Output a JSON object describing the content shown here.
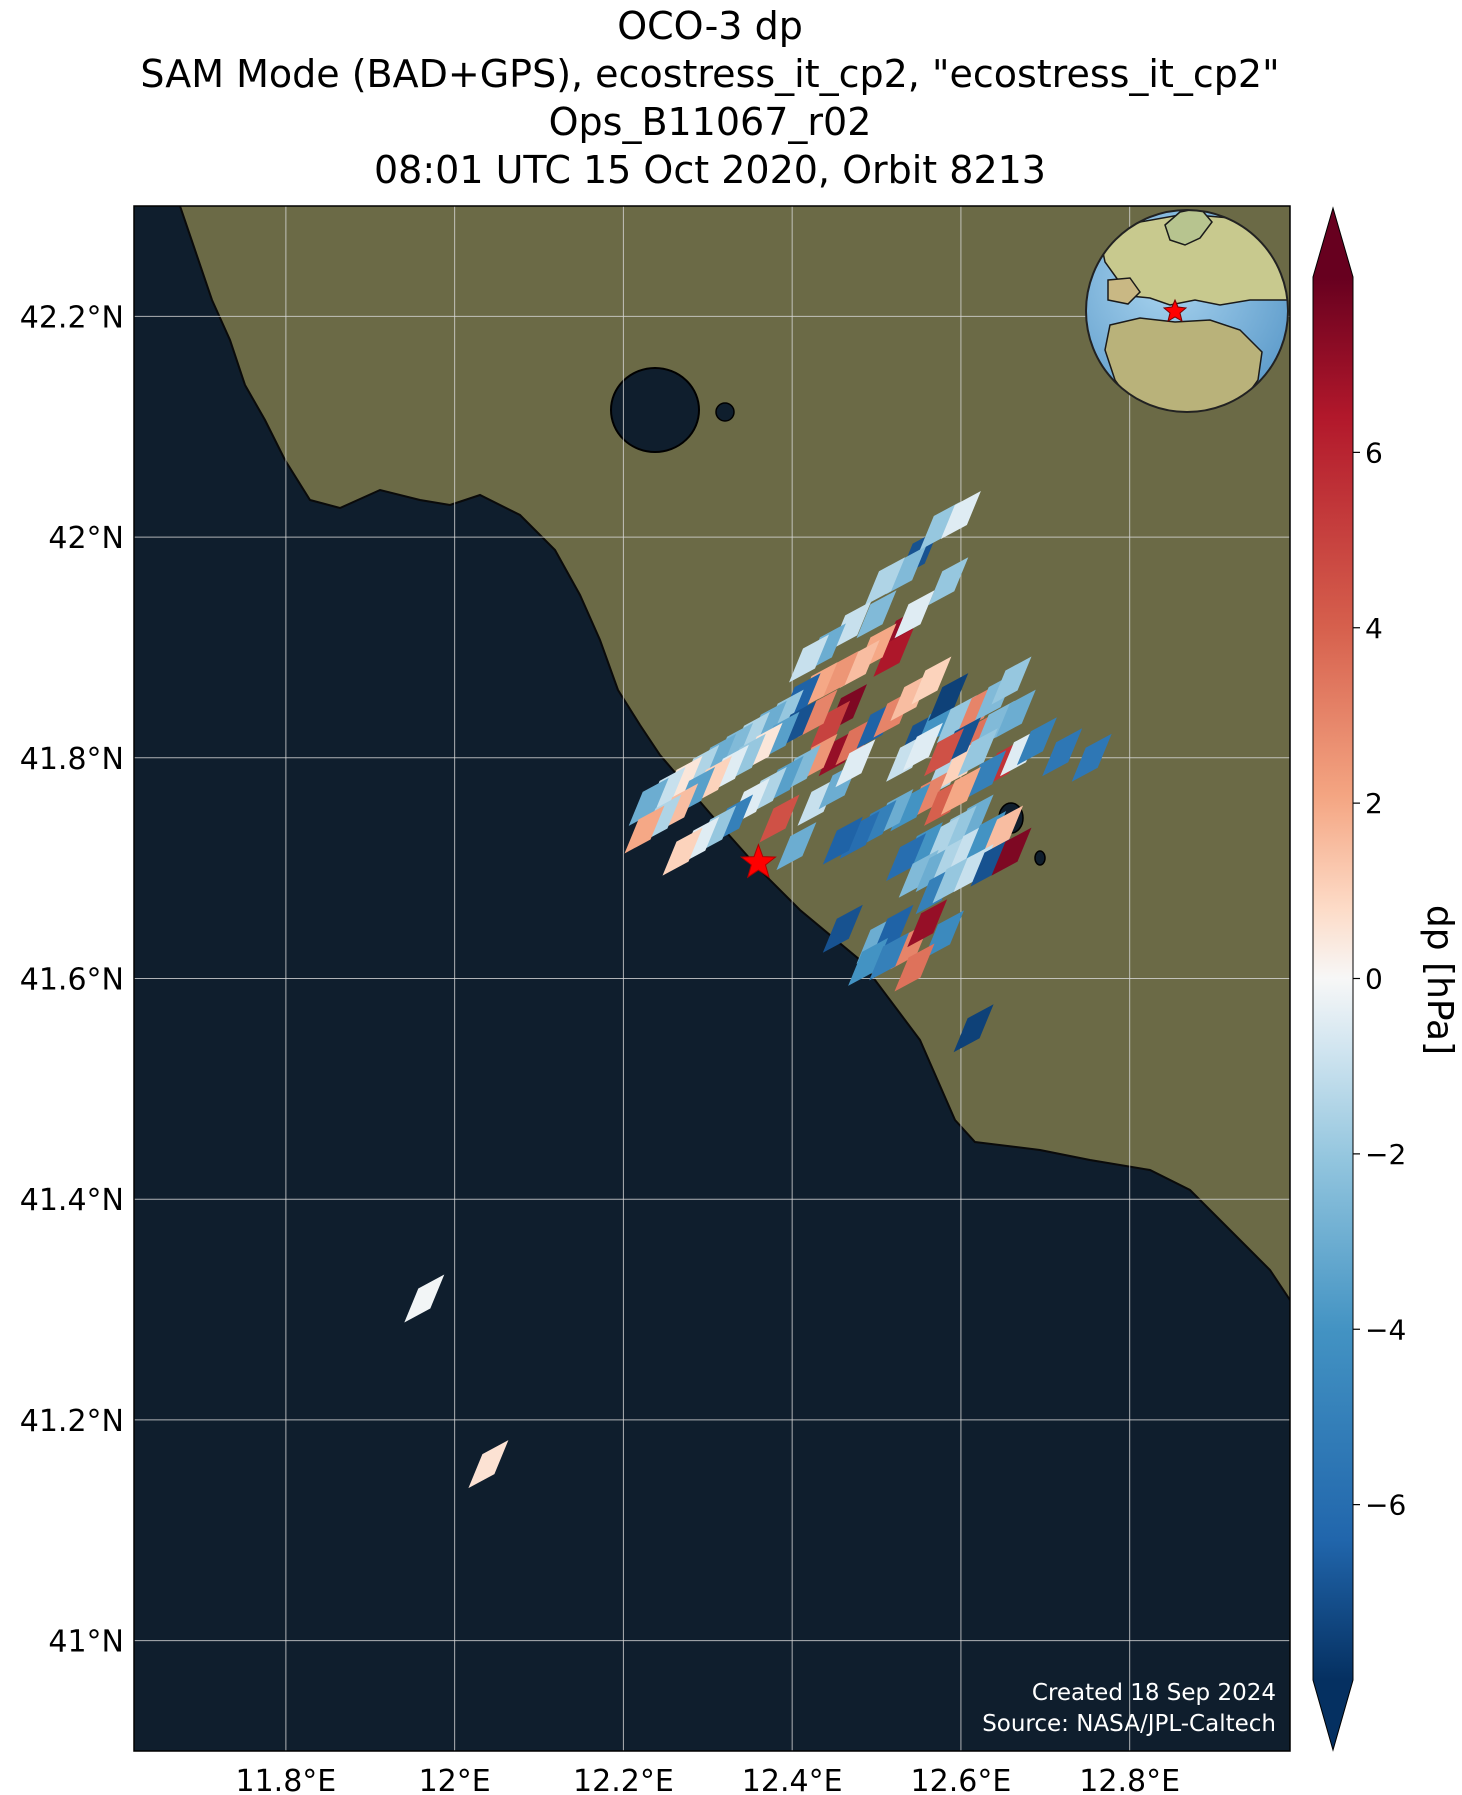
{
  "title": {
    "line1": "OCO-3 dp",
    "line2": "SAM Mode (BAD+GPS), ecostress_it_cp2, \"ecostress_it_cp2\"",
    "line3": "Ops_B11067_r02",
    "line4": "08:01 UTC 15 Oct 2020, Orbit 8213"
  },
  "map": {
    "lon_range": [
      11.62,
      12.99
    ],
    "lat_range": [
      40.9,
      42.3
    ],
    "lon_ticks": [
      {
        "value": 11.8,
        "label": "11.8°E"
      },
      {
        "value": 12.0,
        "label": "12°E"
      },
      {
        "value": 12.2,
        "label": "12.2°E"
      },
      {
        "value": 12.4,
        "label": "12.4°E"
      },
      {
        "value": 12.6,
        "label": "12.6°E"
      },
      {
        "value": 12.8,
        "label": "12.8°E"
      }
    ],
    "lat_ticks": [
      {
        "value": 42.2,
        "label": "42.2°N"
      },
      {
        "value": 42.0,
        "label": "42°N"
      },
      {
        "value": 41.8,
        "label": "41.8°N"
      },
      {
        "value": 41.6,
        "label": "41.6°N"
      },
      {
        "value": 41.4,
        "label": "41.4°N"
      },
      {
        "value": 41.2,
        "label": "41.2°N"
      },
      {
        "value": 41.0,
        "label": "41°N"
      }
    ],
    "gridlines": true,
    "basemap": "satellite imagery",
    "target_marker": {
      "lon": 12.36,
      "lat": 41.705,
      "symbol": "star",
      "color": "#ff0000"
    },
    "inset": "globe locator (Europe / Africa) with red star at target",
    "credit_line1": "Created 18 Sep 2024",
    "credit_line2": "Source: NASA/JPL-Caltech"
  },
  "colorbar": {
    "label": "dp [hPa]",
    "colormap": "RdBu_r",
    "vmin": -8,
    "vmax": 8,
    "extend": "both",
    "ticks": [
      {
        "value": 6,
        "label": "6"
      },
      {
        "value": 4,
        "label": "4"
      },
      {
        "value": 2,
        "label": "2"
      },
      {
        "value": 0,
        "label": "0"
      },
      {
        "value": -2,
        "label": "−2"
      },
      {
        "value": -4,
        "label": "−4"
      },
      {
        "value": -6,
        "label": "−6"
      }
    ]
  },
  "colors": {
    "sea": "#0f1e2d",
    "land": "#6b6a46",
    "grid": "#d8d8d8",
    "marker": "#ff0000"
  },
  "chart_data": {
    "type": "heatmap",
    "variable": "dp",
    "units": "hPa",
    "soundings": [
      {
        "lon": 12.55,
        "lat": 41.985,
        "dp": -7.0
      },
      {
        "lon": 12.535,
        "lat": 41.97,
        "dp": -2.5
      },
      {
        "lon": 12.51,
        "lat": 41.96,
        "dp": -1.5
      },
      {
        "lon": 12.575,
        "lat": 42.01,
        "dp": -2.0
      },
      {
        "lon": 12.6,
        "lat": 42.02,
        "dp": -0.5
      },
      {
        "lon": 12.585,
        "lat": 41.96,
        "dp": -2.0
      },
      {
        "lon": 12.5,
        "lat": 41.93,
        "dp": -2.5
      },
      {
        "lon": 12.47,
        "lat": 41.92,
        "dp": -1.0
      },
      {
        "lon": 12.44,
        "lat": 41.9,
        "dp": -3.0
      },
      {
        "lon": 12.42,
        "lat": 41.89,
        "dp": -1.0
      },
      {
        "lon": 12.53,
        "lat": 41.915,
        "dp": 7.0
      },
      {
        "lon": 12.545,
        "lat": 41.93,
        "dp": -0.5
      },
      {
        "lon": 12.52,
        "lat": 41.895,
        "dp": 6.5
      },
      {
        "lon": 12.5,
        "lat": 41.9,
        "dp": 2.0
      },
      {
        "lon": 12.48,
        "lat": 41.885,
        "dp": 1.5
      },
      {
        "lon": 12.455,
        "lat": 41.875,
        "dp": 2.5
      },
      {
        "lon": 12.43,
        "lat": 41.865,
        "dp": 2.0
      },
      {
        "lon": 12.41,
        "lat": 41.855,
        "dp": -6.5
      },
      {
        "lon": 12.39,
        "lat": 41.84,
        "dp": -2.0
      },
      {
        "lon": 12.37,
        "lat": 41.83,
        "dp": -3.0
      },
      {
        "lon": 12.35,
        "lat": 41.82,
        "dp": -1.5
      },
      {
        "lon": 12.33,
        "lat": 41.81,
        "dp": -2.5
      },
      {
        "lon": 12.31,
        "lat": 41.8,
        "dp": -3.0
      },
      {
        "lon": 12.29,
        "lat": 41.79,
        "dp": -1.5
      },
      {
        "lon": 12.27,
        "lat": 41.78,
        "dp": 0.5
      },
      {
        "lon": 12.25,
        "lat": 41.77,
        "dp": -1.0
      },
      {
        "lon": 12.23,
        "lat": 41.76,
        "dp": -3.0
      },
      {
        "lon": 12.465,
        "lat": 41.845,
        "dp": 7.5
      },
      {
        "lon": 12.445,
        "lat": 41.83,
        "dp": 5.0
      },
      {
        "lon": 12.43,
        "lat": 41.84,
        "dp": 3.0
      },
      {
        "lon": 12.405,
        "lat": 41.83,
        "dp": -7.0
      },
      {
        "lon": 12.385,
        "lat": 41.82,
        "dp": -3.5
      },
      {
        "lon": 12.365,
        "lat": 41.81,
        "dp": 0.5
      },
      {
        "lon": 12.345,
        "lat": 41.8,
        "dp": -2.0
      },
      {
        "lon": 12.325,
        "lat": 41.79,
        "dp": -0.5
      },
      {
        "lon": 12.305,
        "lat": 41.78,
        "dp": 1.0
      },
      {
        "lon": 12.285,
        "lat": 41.77,
        "dp": -3.5
      },
      {
        "lon": 12.265,
        "lat": 41.755,
        "dp": 1.5
      },
      {
        "lon": 12.245,
        "lat": 41.745,
        "dp": -1.5
      },
      {
        "lon": 12.225,
        "lat": 41.735,
        "dp": 2.0
      },
      {
        "lon": 12.455,
        "lat": 41.805,
        "dp": 7.0
      },
      {
        "lon": 12.43,
        "lat": 41.8,
        "dp": 2.5
      },
      {
        "lon": 12.41,
        "lat": 41.79,
        "dp": -2.5
      },
      {
        "lon": 12.39,
        "lat": 41.78,
        "dp": -3.5
      },
      {
        "lon": 12.37,
        "lat": 41.77,
        "dp": -1.5
      },
      {
        "lon": 12.35,
        "lat": 41.76,
        "dp": -0.5
      },
      {
        "lon": 12.33,
        "lat": 41.745,
        "dp": -5.0
      },
      {
        "lon": 12.31,
        "lat": 41.735,
        "dp": -2.0
      },
      {
        "lon": 12.29,
        "lat": 41.725,
        "dp": -0.5
      },
      {
        "lon": 12.27,
        "lat": 41.715,
        "dp": 1.0
      },
      {
        "lon": 12.475,
        "lat": 41.815,
        "dp": 3.5
      },
      {
        "lon": 12.5,
        "lat": 41.83,
        "dp": -6.5
      },
      {
        "lon": 12.52,
        "lat": 41.84,
        "dp": 3.0
      },
      {
        "lon": 12.54,
        "lat": 41.855,
        "dp": 1.5
      },
      {
        "lon": 12.565,
        "lat": 41.87,
        "dp": 1.0
      },
      {
        "lon": 12.55,
        "lat": 41.82,
        "dp": -7.0
      },
      {
        "lon": 12.57,
        "lat": 41.83,
        "dp": -4.0
      },
      {
        "lon": 12.585,
        "lat": 41.855,
        "dp": -7.5
      },
      {
        "lon": 12.595,
        "lat": 41.835,
        "dp": -2.0
      },
      {
        "lon": 12.62,
        "lat": 41.845,
        "dp": 3.0
      },
      {
        "lon": 12.64,
        "lat": 41.855,
        "dp": -2.5
      },
      {
        "lon": 12.66,
        "lat": 41.87,
        "dp": -2.0
      },
      {
        "lon": 12.62,
        "lat": 41.82,
        "dp": 3.5
      },
      {
        "lon": 12.64,
        "lat": 41.83,
        "dp": -2.5
      },
      {
        "lon": 12.665,
        "lat": 41.84,
        "dp": -3.0
      },
      {
        "lon": 12.535,
        "lat": 41.8,
        "dp": -1.0
      },
      {
        "lon": 12.555,
        "lat": 41.81,
        "dp": -0.5
      },
      {
        "lon": 12.58,
        "lat": 41.785,
        "dp": -1.5
      },
      {
        "lon": 12.6,
        "lat": 41.795,
        "dp": 1.0
      },
      {
        "lon": 12.62,
        "lat": 41.805,
        "dp": -2.0
      },
      {
        "lon": 12.6,
        "lat": 41.815,
        "dp": -7.0
      },
      {
        "lon": 12.58,
        "lat": 41.805,
        "dp": 4.5
      },
      {
        "lon": 12.65,
        "lat": 41.795,
        "dp": 5.5
      },
      {
        "lon": 12.67,
        "lat": 41.805,
        "dp": -0.5
      },
      {
        "lon": 12.69,
        "lat": 41.815,
        "dp": -5.0
      },
      {
        "lon": 12.63,
        "lat": 41.785,
        "dp": -5.0
      },
      {
        "lon": 12.72,
        "lat": 41.805,
        "dp": -5.5
      },
      {
        "lon": 12.755,
        "lat": 41.8,
        "dp": -5.5
      },
      {
        "lon": 12.56,
        "lat": 41.765,
        "dp": 3.0
      },
      {
        "lon": 12.54,
        "lat": 41.755,
        "dp": -4.0
      },
      {
        "lon": 12.52,
        "lat": 41.75,
        "dp": -3.0
      },
      {
        "lon": 12.5,
        "lat": 41.74,
        "dp": -5.0
      },
      {
        "lon": 12.48,
        "lat": 41.73,
        "dp": -6.0
      },
      {
        "lon": 12.46,
        "lat": 41.725,
        "dp": -6.5
      },
      {
        "lon": 12.58,
        "lat": 41.76,
        "dp": 4.0
      },
      {
        "lon": 12.6,
        "lat": 41.77,
        "dp": 2.0
      },
      {
        "lon": 12.615,
        "lat": 41.745,
        "dp": -3.0
      },
      {
        "lon": 12.595,
        "lat": 41.735,
        "dp": -2.0
      },
      {
        "lon": 12.575,
        "lat": 41.725,
        "dp": -1.5
      },
      {
        "lon": 12.555,
        "lat": 41.72,
        "dp": -4.0
      },
      {
        "lon": 12.535,
        "lat": 41.71,
        "dp": -6.0
      },
      {
        "lon": 12.55,
        "lat": 41.695,
        "dp": -2.5
      },
      {
        "lon": 12.57,
        "lat": 41.7,
        "dp": -3.0
      },
      {
        "lon": 12.59,
        "lat": 41.71,
        "dp": -1.5
      },
      {
        "lon": 12.61,
        "lat": 41.72,
        "dp": -1.0
      },
      {
        "lon": 12.63,
        "lat": 41.73,
        "dp": -4.0
      },
      {
        "lon": 12.65,
        "lat": 41.735,
        "dp": 1.5
      },
      {
        "lon": 12.57,
        "lat": 41.68,
        "dp": -5.0
      },
      {
        "lon": 12.59,
        "lat": 41.69,
        "dp": -2.0
      },
      {
        "lon": 12.615,
        "lat": 41.7,
        "dp": -1.0
      },
      {
        "lon": 12.635,
        "lat": 41.705,
        "dp": -7.0
      },
      {
        "lon": 12.66,
        "lat": 41.715,
        "dp": 7.5
      },
      {
        "lon": 12.385,
        "lat": 41.745,
        "dp": 4.5
      },
      {
        "lon": 12.405,
        "lat": 41.72,
        "dp": -3.0
      },
      {
        "lon": 12.43,
        "lat": 41.76,
        "dp": -1.0
      },
      {
        "lon": 12.455,
        "lat": 41.775,
        "dp": -3.0
      },
      {
        "lon": 12.475,
        "lat": 41.795,
        "dp": -0.5
      },
      {
        "lon": 12.46,
        "lat": 41.645,
        "dp": -7.0
      },
      {
        "lon": 12.5,
        "lat": 41.635,
        "dp": -3.0
      },
      {
        "lon": 12.52,
        "lat": 41.645,
        "dp": -6.5
      },
      {
        "lon": 12.54,
        "lat": 41.63,
        "dp": 3.0
      },
      {
        "lon": 12.56,
        "lat": 41.65,
        "dp": 7.0
      },
      {
        "lon": 12.58,
        "lat": 41.64,
        "dp": -4.5
      },
      {
        "lon": 12.49,
        "lat": 41.615,
        "dp": -4.0
      },
      {
        "lon": 12.515,
        "lat": 41.62,
        "dp": -5.0
      },
      {
        "lon": 12.545,
        "lat": 41.61,
        "dp": 3.5
      },
      {
        "lon": 12.615,
        "lat": 41.555,
        "dp": -7.5
      },
      {
        "lon": 11.964,
        "lat": 41.31,
        "dp": -0.1
      },
      {
        "lon": 12.04,
        "lat": 41.16,
        "dp": 0.6
      }
    ]
  }
}
